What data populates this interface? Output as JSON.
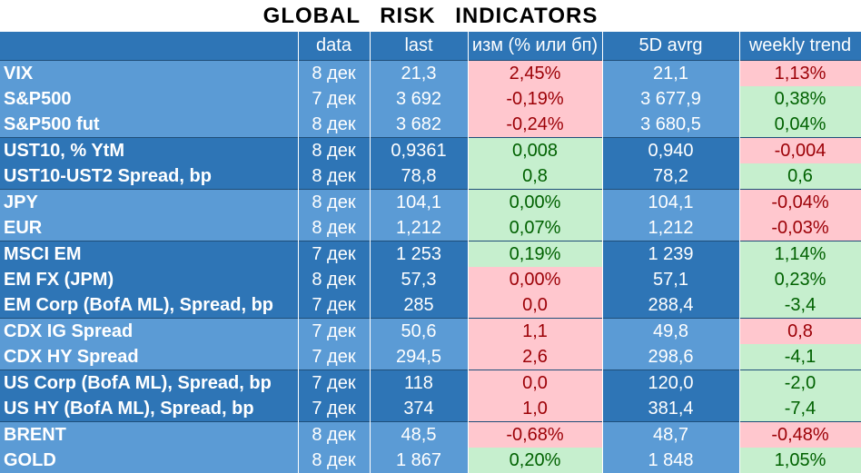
{
  "title": "GLOBAL   RISK   INDICATORS",
  "columns": [
    "",
    "data",
    "last",
    "изм (% или бп)",
    "5D avrg",
    "weekly trend"
  ],
  "rows": [
    {
      "name": "VIX",
      "date": "8 дек",
      "last": "21,3",
      "chg": "2,45%",
      "chg_s": "neg",
      "avg": "21,1",
      "trend": "1,13%",
      "trend_s": "neg",
      "group": "gL",
      "top": true
    },
    {
      "name": "S&P500",
      "date": "7 дек",
      "last": "3 692",
      "chg": "-0,19%",
      "chg_s": "neg",
      "avg": "3 677,9",
      "trend": "0,38%",
      "trend_s": "pos",
      "group": "gL",
      "top": false
    },
    {
      "name": "S&P500 fut",
      "date": "8 дек",
      "last": "3 682",
      "chg": "-0,24%",
      "chg_s": "neg",
      "avg": "3 680,5",
      "trend": "0,04%",
      "trend_s": "pos",
      "group": "gL",
      "top": false
    },
    {
      "name": "UST10, % YtM",
      "date": "8 дек",
      "last": "0,9361",
      "chg": "0,008",
      "chg_s": "pos",
      "avg": "0,940",
      "trend": "-0,004",
      "trend_s": "neg",
      "group": "gD",
      "top": true
    },
    {
      "name": "UST10-UST2 Spread, bp",
      "date": "8 дек",
      "last": "78,8",
      "chg": "0,8",
      "chg_s": "pos",
      "avg": "78,2",
      "trend": "0,6",
      "trend_s": "pos",
      "group": "gD",
      "top": false
    },
    {
      "name": "JPY",
      "date": "8 дек",
      "last": "104,1",
      "chg": "0,00%",
      "chg_s": "pos",
      "avg": "104,1",
      "trend": "-0,04%",
      "trend_s": "neg",
      "group": "gL",
      "top": true
    },
    {
      "name": "EUR",
      "date": "8 дек",
      "last": "1,212",
      "chg": "0,07%",
      "chg_s": "pos",
      "avg": "1,212",
      "trend": "-0,03%",
      "trend_s": "neg",
      "group": "gL",
      "top": false
    },
    {
      "name": "MSCI EM",
      "date": "7 дек",
      "last": "1 253",
      "chg": "0,19%",
      "chg_s": "pos",
      "avg": "1 239",
      "trend": "1,14%",
      "trend_s": "pos",
      "group": "gD",
      "top": true
    },
    {
      "name": "EM FX (JPM)",
      "date": "8 дек",
      "last": "57,3",
      "chg": "0,00%",
      "chg_s": "neg",
      "avg": "57,1",
      "trend": "0,23%",
      "trend_s": "pos",
      "group": "gD",
      "top": false
    },
    {
      "name": "EM Corp (BofA ML), Spread, bp",
      "date": "7 дек",
      "last": "285",
      "chg": "0,0",
      "chg_s": "neg",
      "avg": "288,4",
      "trend": "-3,4",
      "trend_s": "pos",
      "group": "gD",
      "top": false
    },
    {
      "name": "CDX IG Spread",
      "date": "7 дек",
      "last": "50,6",
      "chg": "1,1",
      "chg_s": "neg",
      "avg": "49,8",
      "trend": "0,8",
      "trend_s": "neg",
      "group": "gL",
      "top": true
    },
    {
      "name": "CDX HY Spread",
      "date": "7 дек",
      "last": "294,5",
      "chg": "2,6",
      "chg_s": "neg",
      "avg": "298,6",
      "trend": "-4,1",
      "trend_s": "pos",
      "group": "gL",
      "top": false
    },
    {
      "name": "US Corp (BofA ML), Spread, bp",
      "date": "7 дек",
      "last": "118",
      "chg": "0,0",
      "chg_s": "neg",
      "avg": "120,0",
      "trend": "-2,0",
      "trend_s": "pos",
      "group": "gD",
      "top": true
    },
    {
      "name": "US HY (BofA ML), Spread, bp",
      "date": "7 дек",
      "last": "374",
      "chg": "1,0",
      "chg_s": "neg",
      "avg": "381,4",
      "trend": "-7,4",
      "trend_s": "pos",
      "group": "gD",
      "top": false
    },
    {
      "name": "BRENT",
      "date": "8 дек",
      "last": "48,5",
      "chg": "-0,68%",
      "chg_s": "neg",
      "avg": "48,7",
      "trend": "-0,48%",
      "trend_s": "neg",
      "group": "gL",
      "top": true
    },
    {
      "name": "GOLD",
      "date": "8 дек",
      "last": "1 867",
      "chg": "0,20%",
      "chg_s": "pos",
      "avg": "1 848",
      "trend": "1,05%",
      "trend_s": "pos",
      "group": "gL",
      "top": false
    }
  ],
  "chart_data": {
    "type": "table",
    "title": "GLOBAL   RISK   INDICATORS",
    "headers": [
      "",
      "data",
      "last",
      "изм (% или бп)",
      "5D avrg",
      "weekly trend"
    ]
  }
}
